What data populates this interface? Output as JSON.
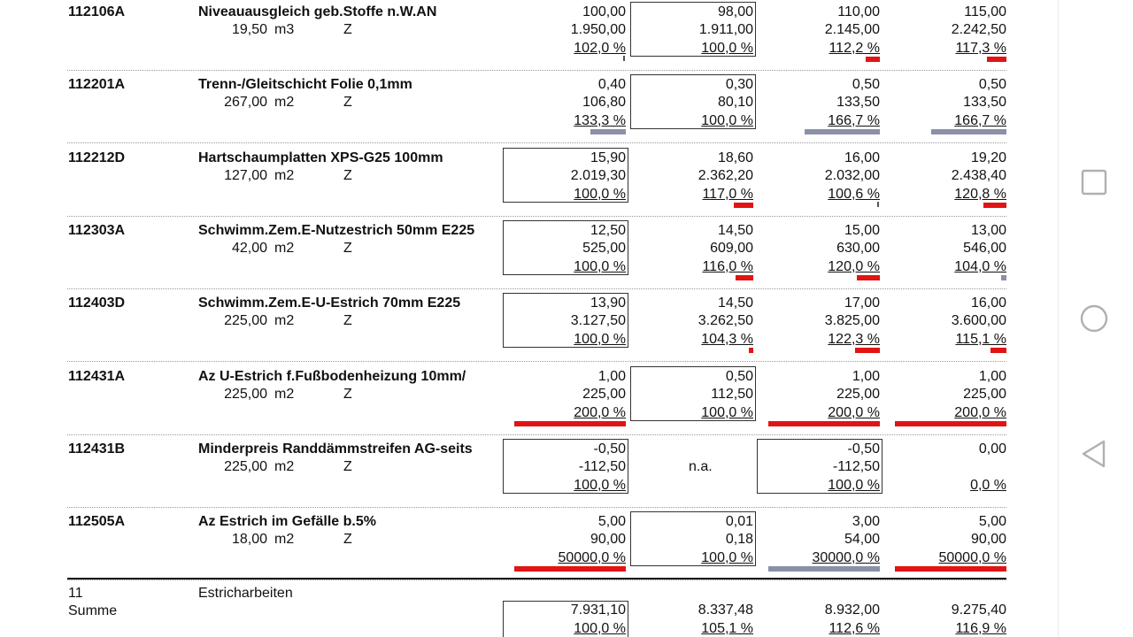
{
  "rows": [
    {
      "code": "112106A",
      "desc": "Niveauausgleich geb.Stoffe n.W.AN",
      "qty": "19,50",
      "unit": "m3",
      "z": "Z",
      "cols": [
        {
          "p": "100,00",
          "t": "1.950,00",
          "pct": "102,0 %"
        },
        {
          "p": "98,00",
          "t": "1.911,00",
          "pct": "100,0 %"
        },
        {
          "p": "110,00",
          "t": "2.145,00",
          "pct": "112,2 %"
        },
        {
          "p": "115,00",
          "t": "2.242,50",
          "pct": "117,3 %"
        }
      ]
    },
    {
      "code": "112201A",
      "desc": "Trenn-/Gleitschicht Folie 0,1mm",
      "qty": "267,00",
      "unit": "m2",
      "z": "Z",
      "cols": [
        {
          "p": "0,40",
          "t": "106,80",
          "pct": "133,3 %"
        },
        {
          "p": "0,30",
          "t": "80,10",
          "pct": "100,0 %"
        },
        {
          "p": "0,50",
          "t": "133,50",
          "pct": "166,7 %"
        },
        {
          "p": "0,50",
          "t": "133,50",
          "pct": "166,7 %"
        }
      ]
    },
    {
      "code": "112212D",
      "desc": "Hartschaumplatten XPS-G25 100mm",
      "qty": "127,00",
      "unit": "m2",
      "z": "Z",
      "cols": [
        {
          "p": "15,90",
          "t": "2.019,30",
          "pct": "100,0 %"
        },
        {
          "p": "18,60",
          "t": "2.362,20",
          "pct": "117,0 %"
        },
        {
          "p": "16,00",
          "t": "2.032,00",
          "pct": "100,6 %"
        },
        {
          "p": "19,20",
          "t": "2.438,40",
          "pct": "120,8 %"
        }
      ]
    },
    {
      "code": "112303A",
      "desc": "Schwimm.Zem.E-Nutzestrich 50mm E225",
      "qty": "42,00",
      "unit": "m2",
      "z": "Z",
      "cols": [
        {
          "p": "12,50",
          "t": "525,00",
          "pct": "100,0 %"
        },
        {
          "p": "14,50",
          "t": "609,00",
          "pct": "116,0 %"
        },
        {
          "p": "15,00",
          "t": "630,00",
          "pct": "120,0 %"
        },
        {
          "p": "13,00",
          "t": "546,00",
          "pct": "104,0 %"
        }
      ]
    },
    {
      "code": "112403D",
      "desc": "Schwimm.Zem.E-U-Estrich 70mm E225",
      "qty": "225,00",
      "unit": "m2",
      "z": "Z",
      "cols": [
        {
          "p": "13,90",
          "t": "3.127,50",
          "pct": "100,0 %"
        },
        {
          "p": "14,50",
          "t": "3.262,50",
          "pct": "104,3 %"
        },
        {
          "p": "17,00",
          "t": "3.825,00",
          "pct": "122,3 %"
        },
        {
          "p": "16,00",
          "t": "3.600,00",
          "pct": "115,1 %"
        }
      ]
    },
    {
      "code": "112431A",
      "desc": "Az U-Estrich f.Fußbodenheizung 10mm/",
      "qty": "225,00",
      "unit": "m2",
      "z": "Z",
      "cols": [
        {
          "p": "1,00",
          "t": "225,00",
          "pct": "200,0 %"
        },
        {
          "p": "0,50",
          "t": "112,50",
          "pct": "100,0 %"
        },
        {
          "p": "1,00",
          "t": "225,00",
          "pct": "200,0 %"
        },
        {
          "p": "1,00",
          "t": "225,00",
          "pct": "200,0 %"
        }
      ]
    },
    {
      "code": "112431B",
      "desc": "Minderpreis Randdämmstreifen AG-seits",
      "qty": "225,00",
      "unit": "m2",
      "z": "Z",
      "cols": [
        {
          "p": "-0,50",
          "t": "-112,50",
          "pct": "100,0 %"
        },
        {
          "na": "n.a."
        },
        {
          "p": "-0,50",
          "t": "-112,50",
          "pct": "100,0 %"
        },
        {
          "p": "0,00",
          "t": "",
          "pct": "0,0 %"
        }
      ]
    },
    {
      "code": "112505A",
      "desc": "Az Estrich im Gefälle b.5%",
      "qty": "18,00",
      "unit": "m2",
      "z": "Z",
      "cols": [
        {
          "p": "5,00",
          "t": "90,00",
          "pct": "50000,0 %"
        },
        {
          "p": "0,01",
          "t": "0,18",
          "pct": "100,0 %"
        },
        {
          "p": "3,00",
          "t": "54,00",
          "pct": "30000,0 %"
        },
        {
          "p": "5,00",
          "t": "90,00",
          "pct": "50000,0 %"
        }
      ]
    }
  ],
  "summary": {
    "num": "11",
    "label": "Summe",
    "name": "Estricharbeiten",
    "cols": [
      {
        "t": "7.931,10",
        "pct": "100,0 %"
      },
      {
        "t": "8.337,48",
        "pct": "105,1 %"
      },
      {
        "t": "8.932,00",
        "pct": "112,6 %"
      },
      {
        "t": "9.275,40",
        "pct": "116,9 %"
      }
    ]
  },
  "nav": {
    "recent": "square-icon",
    "home": "circle-icon",
    "back": "triangle-back-icon"
  },
  "colors": {
    "over": "#e11414",
    "under": "#8a90a8"
  }
}
